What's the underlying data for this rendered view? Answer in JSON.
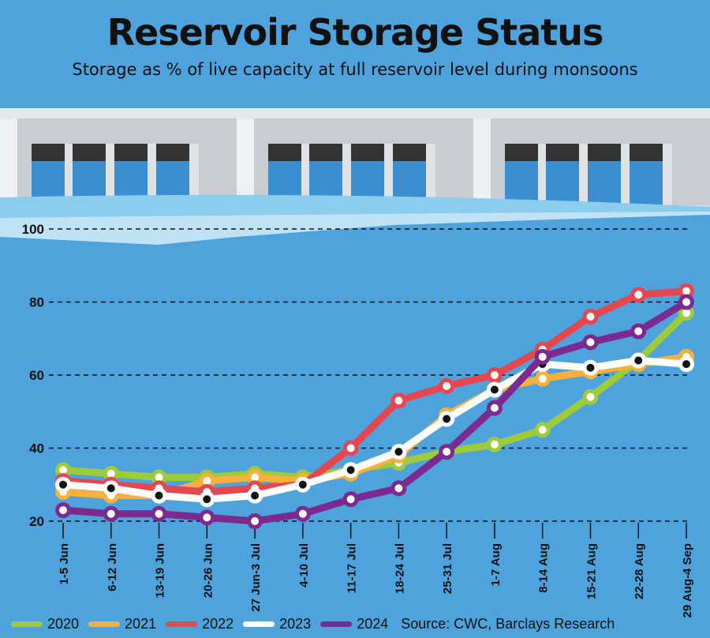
{
  "header": {
    "title": "Reservoir Storage Status",
    "subtitle": "Storage as % of live capacity at full reservoir level during monsoons"
  },
  "source": "Source: CWC, Barclays Research",
  "chart_data": {
    "type": "line",
    "title": "Reservoir Storage Status",
    "subtitle": "Storage as % of live capacity at full reservoir level during monsoons",
    "xlabel": "",
    "ylabel": "",
    "ylim": [
      20,
      100
    ],
    "yticks": [
      20,
      40,
      60,
      80,
      100
    ],
    "grid": true,
    "legend": "bottom-left",
    "categories": [
      "1-5 Jun",
      "6-12 Jun",
      "13-19 Jun",
      "20-26 Jun",
      "27 Jun-3 Jul",
      "4-10 Jul",
      "11-17 Jul",
      "18-24 Jul",
      "25-31 Jul",
      "1-7 Aug",
      "8-14 Aug",
      "15-21 Aug",
      "22-28 Aug",
      "29 Aug-4 Sep"
    ],
    "series": [
      {
        "name": "2020",
        "color": "#9ccb3b",
        "values": [
          34,
          33,
          32,
          32,
          33,
          32,
          34,
          36,
          39,
          41,
          45,
          54,
          64,
          77
        ]
      },
      {
        "name": "2021",
        "color": "#fbb03b",
        "values": [
          28,
          27,
          27,
          31,
          32,
          31,
          33,
          38,
          49,
          56,
          59,
          61,
          63,
          65
        ]
      },
      {
        "name": "2022",
        "color": "#e5474f",
        "values": [
          31,
          30,
          29,
          28,
          29,
          30,
          40,
          53,
          57,
          60,
          67,
          76,
          82,
          83
        ]
      },
      {
        "name": "2023",
        "color": "#ffffff",
        "values": [
          30,
          29,
          27,
          26,
          27,
          30,
          34,
          39,
          48,
          56,
          63,
          62,
          64,
          63
        ]
      },
      {
        "name": "2024",
        "color": "#7b2a8f",
        "values": [
          23,
          22,
          22,
          21,
          20,
          22,
          26,
          29,
          39,
          51,
          65,
          69,
          72,
          80
        ]
      }
    ]
  }
}
